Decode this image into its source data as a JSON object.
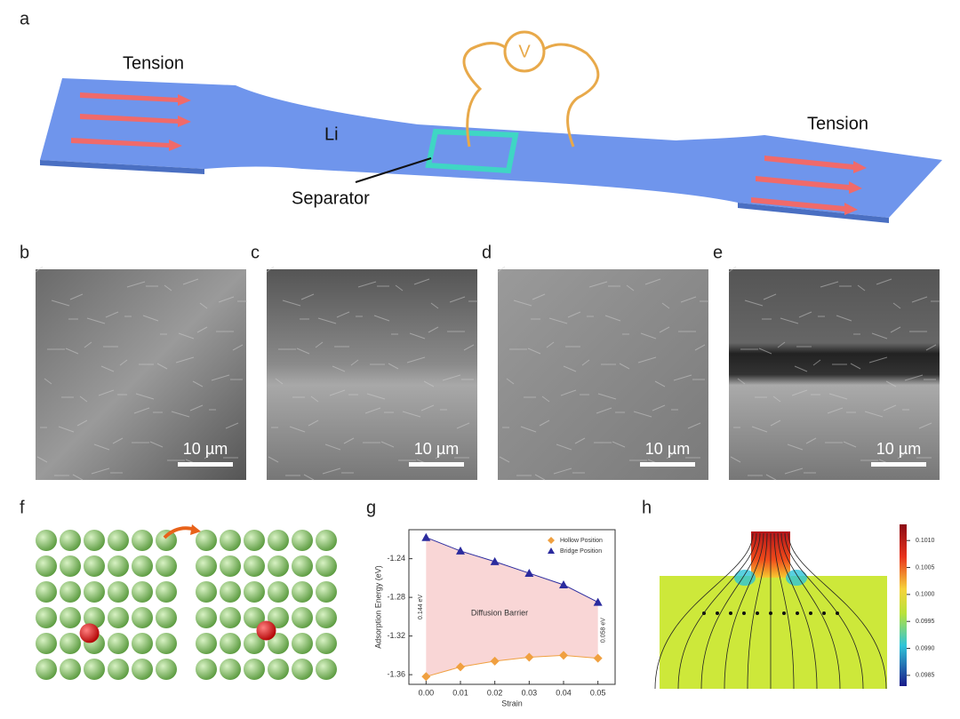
{
  "panel_a": {
    "label": "a",
    "tension_left": "Tension",
    "tension_right": "Tension",
    "metal": "Li",
    "voltmeter": "V",
    "separator": "Separator"
  },
  "sem_panels": [
    {
      "label": "b",
      "scale_bar": "10 µm"
    },
    {
      "label": "c",
      "scale_bar": "10 µm"
    },
    {
      "label": "d",
      "scale_bar": "10 µm"
    },
    {
      "label": "e",
      "scale_bar": "10 µm"
    }
  ],
  "panel_f": {
    "label": "f"
  },
  "panel_g": {
    "label": "g"
  },
  "chart_data": {
    "type": "line",
    "x": [
      0,
      0.01,
      0.02,
      0.03,
      0.04,
      0.05
    ],
    "series": [
      {
        "name": "Hollow Position",
        "color": "#f0a040",
        "values": [
          -1.362,
          -1.352,
          -1.346,
          -1.342,
          -1.34,
          -1.343
        ]
      },
      {
        "name": "Bridge Position",
        "color": "#2b2b9e",
        "values": [
          -1.218,
          -1.232,
          -1.243,
          -1.255,
          -1.267,
          -1.285
        ]
      }
    ],
    "xlabel": "Strain",
    "ylabel": "Adsorption Energy (eV)",
    "xlim": [
      -0.005,
      0.055
    ],
    "ylim": [
      -1.37,
      -1.21
    ],
    "xticks": [
      {
        "value": 0,
        "label": "0.00"
      },
      {
        "value": 0.01,
        "label": "0.01"
      },
      {
        "value": 0.02,
        "label": "0.02"
      },
      {
        "value": 0.03,
        "label": "0.03"
      },
      {
        "value": 0.04,
        "label": "0.04"
      },
      {
        "value": 0.05,
        "label": "0.05"
      }
    ],
    "yticks": [
      -1.36,
      -1.32,
      -1.28,
      -1.24
    ],
    "annotations": [
      "Diffusion Barrier",
      "0.144 eV",
      "0.058 eV"
    ],
    "fill_color": "#f9d6d6",
    "legend": "upper right"
  },
  "panel_h": {
    "label": "h",
    "colorbar_ticks": [
      {
        "value": 0.101,
        "label": "0.1010"
      },
      {
        "value": 0.1005,
        "label": "0.1005"
      },
      {
        "value": 0.1,
        "label": "0.1000"
      },
      {
        "value": 0.0995,
        "label": "0.0995"
      },
      {
        "value": 0.099,
        "label": "0.0990"
      },
      {
        "value": 0.0985,
        "label": "0.0985"
      }
    ],
    "colorbar_range": [
      0.0983,
      0.1013
    ]
  }
}
